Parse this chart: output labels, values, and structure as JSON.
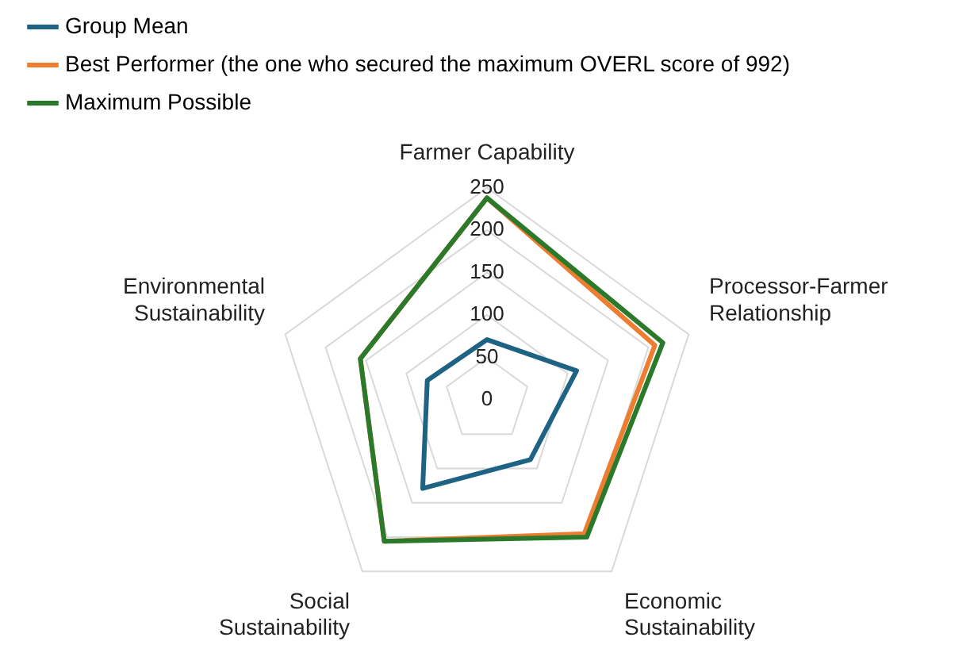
{
  "chart_data": {
    "type": "radar",
    "categories": [
      "Farmer Capability",
      "Processor-Farmer Relationship",
      "Economic Sustainability",
      "Social Sustainability",
      "Environmental Sustainability"
    ],
    "series": [
      {
        "name": "Group Mean",
        "color": "#1f6384",
        "values": [
          71,
          111,
          87,
          129,
          74
        ]
      },
      {
        "name": "Best Performer (the one who secured the maximum OVERL score of 992)",
        "color": "#ed7d31",
        "values": [
          238,
          208,
          195,
          206,
          157
        ]
      },
      {
        "name": "Maximum Possible",
        "color": "#2b7a2b",
        "values": [
          238,
          218,
          200,
          206,
          157
        ]
      }
    ],
    "ylim": [
      0,
      250
    ],
    "yticks": [
      0,
      50,
      100,
      150,
      200,
      250
    ],
    "grid": true,
    "legend": "top left",
    "marker": "none"
  }
}
